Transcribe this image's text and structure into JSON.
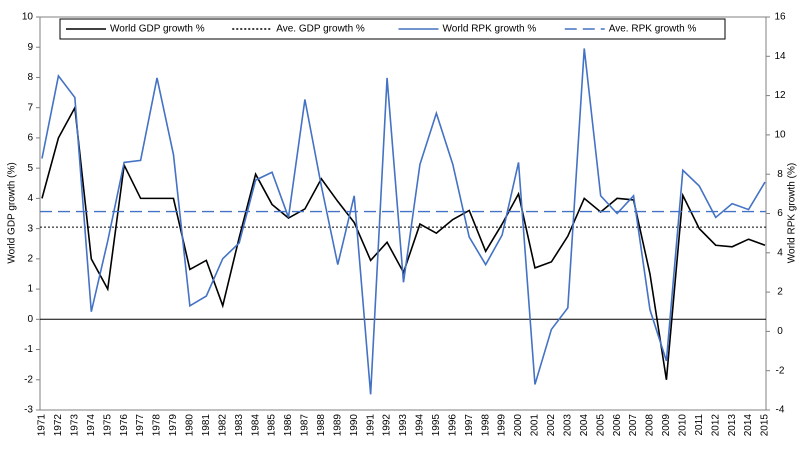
{
  "chart_data": {
    "type": "line",
    "categories": [
      "1971",
      "1972",
      "1973",
      "1974",
      "1975",
      "1976",
      "1977",
      "1978",
      "1979",
      "1980",
      "1981",
      "1982",
      "1983",
      "1984",
      "1985",
      "1986",
      "1987",
      "1988",
      "1989",
      "1990",
      "1991",
      "1992",
      "1993",
      "1994",
      "1995",
      "1996",
      "1997",
      "1998",
      "1999",
      "2000",
      "2001",
      "2002",
      "2003",
      "2004",
      "2005",
      "2006",
      "2007",
      "2008",
      "2009",
      "2010",
      "2011",
      "2012",
      "2013",
      "2014",
      "2015"
    ],
    "series": [
      {
        "name": "World GDP growth %",
        "color": "#000000",
        "axis": "y",
        "values": [
          4.0,
          6.0,
          7.0,
          2.0,
          1.0,
          5.1,
          4.0,
          4.0,
          4.0,
          1.65,
          1.95,
          0.45,
          2.7,
          4.8,
          3.8,
          3.35,
          3.65,
          4.65,
          3.9,
          3.2,
          1.95,
          2.55,
          1.55,
          3.15,
          2.85,
          3.3,
          3.6,
          2.25,
          3.15,
          4.15,
          1.7,
          1.9,
          2.75,
          4.0,
          3.55,
          4.0,
          3.95,
          1.5,
          -2.0,
          4.1,
          3.0,
          2.45,
          2.4,
          2.65,
          2.45
        ]
      },
      {
        "name": "Ave. GDP growth %",
        "color": "#000000",
        "axis": "y",
        "dash": "dotted",
        "value": 3.05
      },
      {
        "name": "World RPK growth %",
        "color": "#4472c4",
        "axis": "y2",
        "values": [
          8.8,
          13.0,
          11.9,
          1.0,
          4.6,
          8.6,
          8.7,
          12.9,
          9.0,
          1.3,
          1.8,
          3.7,
          4.5,
          7.7,
          8.1,
          5.8,
          11.8,
          7.4,
          3.4,
          6.9,
          -3.2,
          12.9,
          2.5,
          8.5,
          11.1,
          8.5,
          4.8,
          3.4,
          4.9,
          8.6,
          -2.7,
          0.1,
          1.2,
          14.4,
          6.9,
          6.0,
          6.9,
          1.1,
          -1.5,
          8.2,
          7.4,
          5.8,
          6.5,
          6.2,
          7.6
        ]
      },
      {
        "name": "Ave. RPK growth %",
        "color": "#4472c4",
        "axis": "y2",
        "dash": "dashed",
        "value": 6.1
      }
    ],
    "ylabel": "World GDP growth (%)",
    "y2label": "World RPK growth (%)",
    "ylim": [
      -3,
      10
    ],
    "yticks": [
      -3,
      -2,
      -1,
      0,
      1,
      2,
      3,
      4,
      5,
      6,
      7,
      8,
      9,
      10
    ],
    "y2lim": [
      -4,
      16
    ],
    "y2ticks": [
      -4,
      -2,
      0,
      2,
      4,
      6,
      8,
      10,
      12,
      14,
      16
    ]
  }
}
